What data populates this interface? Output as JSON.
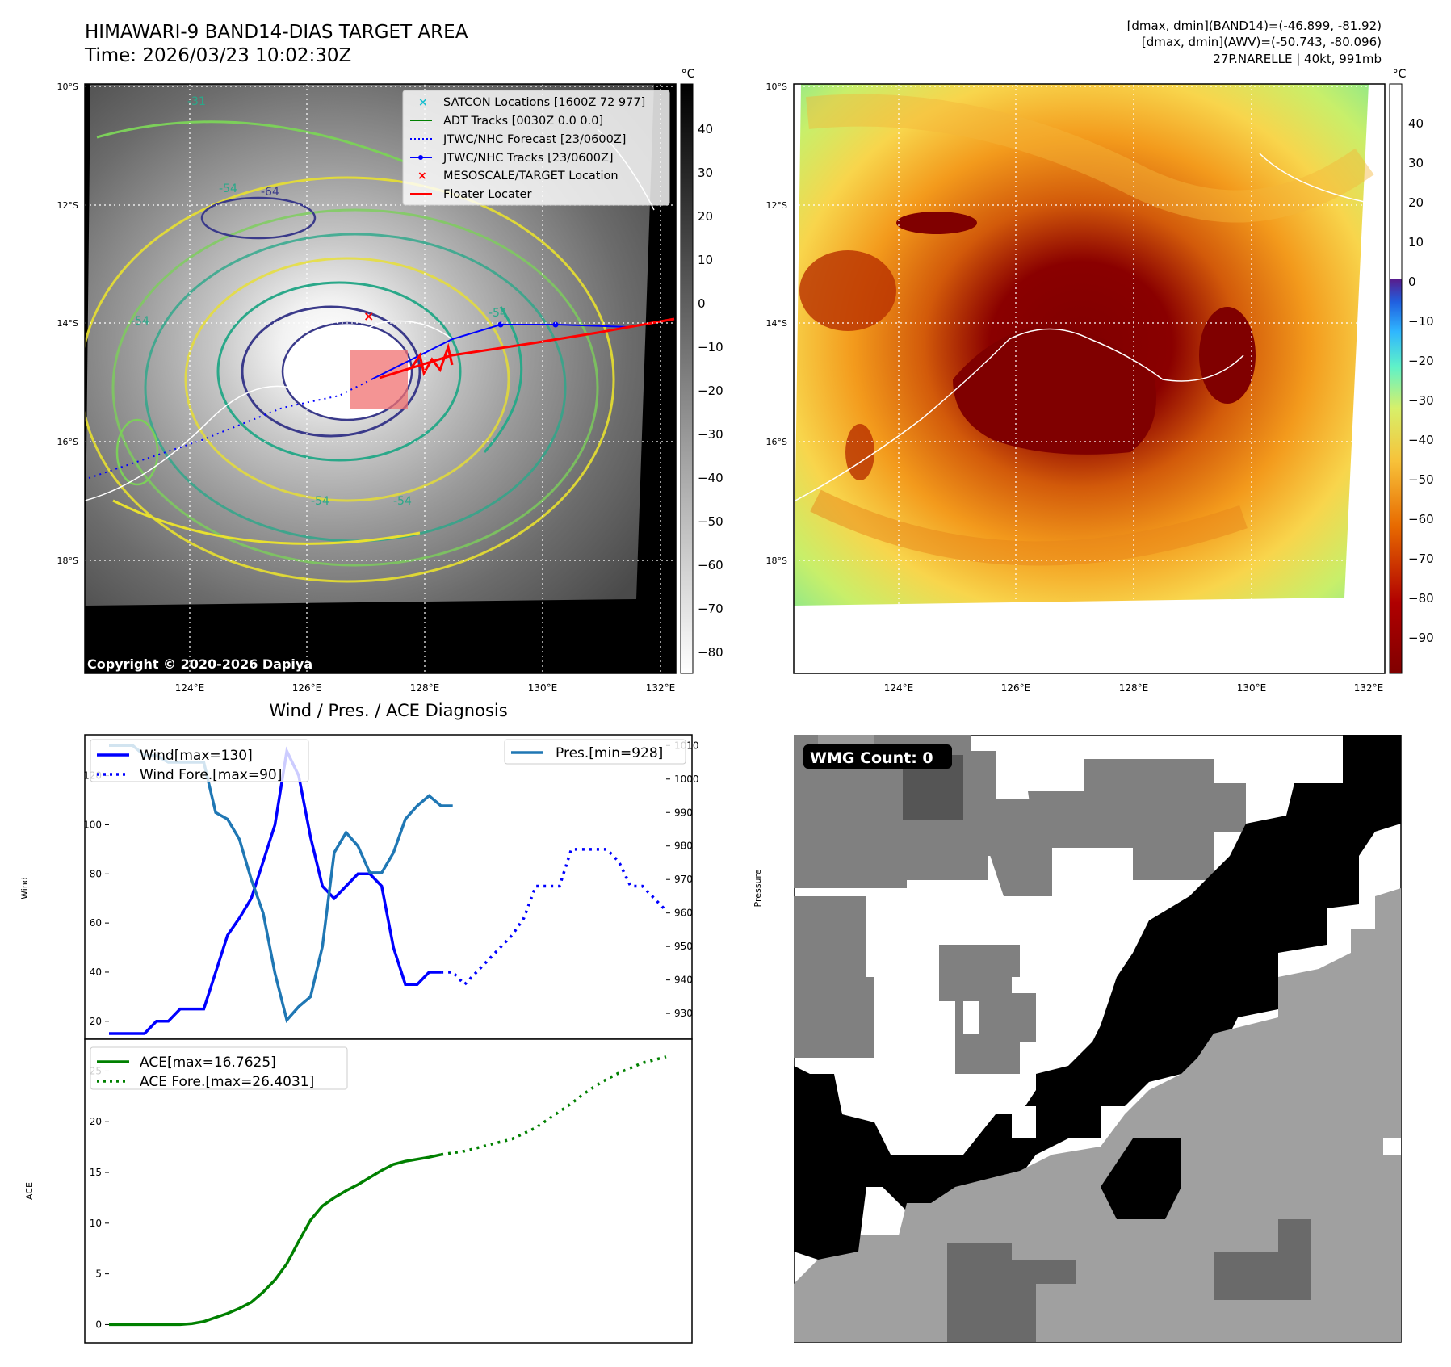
{
  "header": {
    "title": "HIMAWARI-9 BAND14-DIAS TARGET AREA",
    "time": "Time: 2026/03/23 10:02:30Z",
    "info_lines": [
      "[dmax, dmin](BAND14)=(-46.899, -81.92)",
      "[dmax, dmin](AWV)=(-50.743, -80.096)",
      "27P.NARELLE | 40kt, 991mb"
    ]
  },
  "map": {
    "lat_labels": [
      "10°S",
      "12°S",
      "14°S",
      "16°S",
      "18°S"
    ],
    "lon_labels": [
      "124°E",
      "126°E",
      "128°E",
      "130°E",
      "132°E"
    ],
    "copyright": "Copyright © 2020-2026 Dapiya",
    "legend": [
      {
        "label": "SATCON Locations [1600Z 72 977]",
        "color": "#17becf",
        "marker": "x"
      },
      {
        "label": "ADT Tracks [0030Z 0.0 0.0]",
        "color": "#008000",
        "marker": "line"
      },
      {
        "label": "JTWC/NHC Forecast [23/0600Z]",
        "color": "#0000ff",
        "marker": "dotted"
      },
      {
        "label": "JTWC/NHC Tracks [23/0600Z]",
        "color": "#0000ff",
        "marker": "line-dot"
      },
      {
        "label": "MESOSCALE/TARGET Location",
        "color": "#ff0000",
        "marker": "x"
      },
      {
        "label": "Floater Locater",
        "color": "#ff0000",
        "marker": "line"
      }
    ],
    "contour_labels": [
      "-54",
      "-54",
      "-64",
      "-54",
      "-31",
      "-54",
      "-54"
    ],
    "colorbar_unit": "°C",
    "colorbar_ticks": [
      "40",
      "30",
      "20",
      "10",
      "0",
      "−10",
      "−20",
      "−30",
      "−40",
      "−50",
      "−60",
      "−70",
      "−80"
    ],
    "colorbar_right_ticks": [
      "40",
      "30",
      "20",
      "10",
      "0",
      "−10",
      "−20",
      "−30",
      "−40",
      "−50",
      "−60",
      "−70",
      "−80",
      "−90"
    ]
  },
  "diagnosis": {
    "title": "Wind / Pres. / ACE Diagnosis",
    "wind_legend": [
      "Wind[max=130]",
      "Wind Fore.[max=90]"
    ],
    "pres_legend": "Pres.[min=928]",
    "ace_legend": [
      "ACE[max=16.7625]",
      "ACE Fore.[max=26.4031]"
    ],
    "wmg_label": "WMG Count: 0"
  },
  "chart_data": [
    {
      "type": "line",
      "xlabel": "",
      "ylabel": "Wind",
      "ylim": [
        15,
        135
      ],
      "yticks": [
        20,
        40,
        60,
        80,
        100,
        120
      ],
      "y2label": "Pressure",
      "y2lim": [
        924,
        1012
      ],
      "y2ticks": [
        930,
        940,
        950,
        960,
        970,
        980,
        990,
        1000,
        1010
      ],
      "series": [
        {
          "name": "Wind[max=130]",
          "axis": "left",
          "color": "#0000ff",
          "style": "solid",
          "x": [
            0,
            1,
            2,
            3,
            4,
            5,
            6,
            7,
            8,
            9,
            10,
            11,
            12,
            13,
            14,
            15,
            16,
            17,
            18,
            19,
            20,
            21,
            22,
            23,
            24,
            25,
            26,
            27,
            28,
            29,
            30,
            31,
            32,
            33,
            34
          ],
          "y": [
            15,
            15,
            15,
            15,
            20,
            20,
            25,
            25,
            25,
            40,
            55,
            62,
            70,
            85,
            100,
            130,
            120,
            95,
            75,
            70,
            75,
            80,
            80,
            75,
            50,
            35,
            35,
            40,
            40,
            null,
            null,
            null,
            null,
            null,
            null
          ]
        },
        {
          "name": "Wind Fore.[max=90]",
          "axis": "left",
          "color": "#0000ff",
          "style": "dotted",
          "x": [
            28,
            29,
            30,
            31,
            32,
            33,
            34,
            35,
            36,
            37,
            38,
            39,
            40,
            41,
            42,
            43,
            44,
            45,
            46,
            47
          ],
          "y": [
            40,
            40,
            35,
            40,
            45,
            50,
            55,
            62,
            75,
            75,
            75,
            90,
            90,
            90,
            90,
            85,
            75,
            75,
            70,
            65
          ]
        },
        {
          "name": "Pres.[min=928]",
          "axis": "right",
          "color": "#1f77b4",
          "style": "solid",
          "x": [
            0,
            1,
            2,
            3,
            4,
            5,
            6,
            7,
            8,
            9,
            10,
            11,
            12,
            13,
            14,
            15,
            16,
            17,
            18,
            19,
            20,
            21,
            22,
            23,
            24,
            25,
            26,
            27,
            28,
            29
          ],
          "y": [
            1010,
            1010,
            1010,
            1007,
            1007,
            1005,
            1005,
            1005,
            1005,
            990,
            988,
            982,
            970,
            960,
            942,
            928,
            932,
            935,
            950,
            978,
            984,
            980,
            972,
            972,
            978,
            988,
            992,
            995,
            992,
            992
          ]
        }
      ]
    },
    {
      "type": "line",
      "xlabel": "",
      "ylabel": "ACE",
      "ylim": [
        -1,
        27.5
      ],
      "yticks": [
        0,
        5,
        10,
        15,
        20,
        25
      ],
      "series": [
        {
          "name": "ACE[max=16.7625]",
          "color": "#008000",
          "style": "solid",
          "x": [
            0,
            2,
            4,
            6,
            7,
            8,
            9,
            10,
            11,
            12,
            13,
            14,
            15,
            16,
            17,
            18,
            19,
            20,
            21,
            22,
            23,
            24,
            25,
            26,
            27,
            28
          ],
          "y": [
            0,
            0,
            0,
            0,
            0.1,
            0.3,
            0.7,
            1.1,
            1.6,
            2.2,
            3.2,
            4.4,
            6,
            8.2,
            10.3,
            11.7,
            12.5,
            13.2,
            13.8,
            14.5,
            15.2,
            15.8,
            16.1,
            16.3,
            16.5,
            16.76
          ]
        },
        {
          "name": "ACE Fore.[max=26.4031]",
          "color": "#008000",
          "style": "dotted",
          "x": [
            28,
            30,
            32,
            34,
            36,
            37,
            38,
            39,
            40,
            41,
            42,
            43,
            44,
            45,
            46,
            47
          ],
          "y": [
            16.76,
            17.1,
            17.7,
            18.3,
            19.4,
            20.2,
            21,
            21.8,
            22.7,
            23.5,
            24.2,
            24.8,
            25.3,
            25.8,
            26.1,
            26.4
          ]
        }
      ]
    }
  ]
}
